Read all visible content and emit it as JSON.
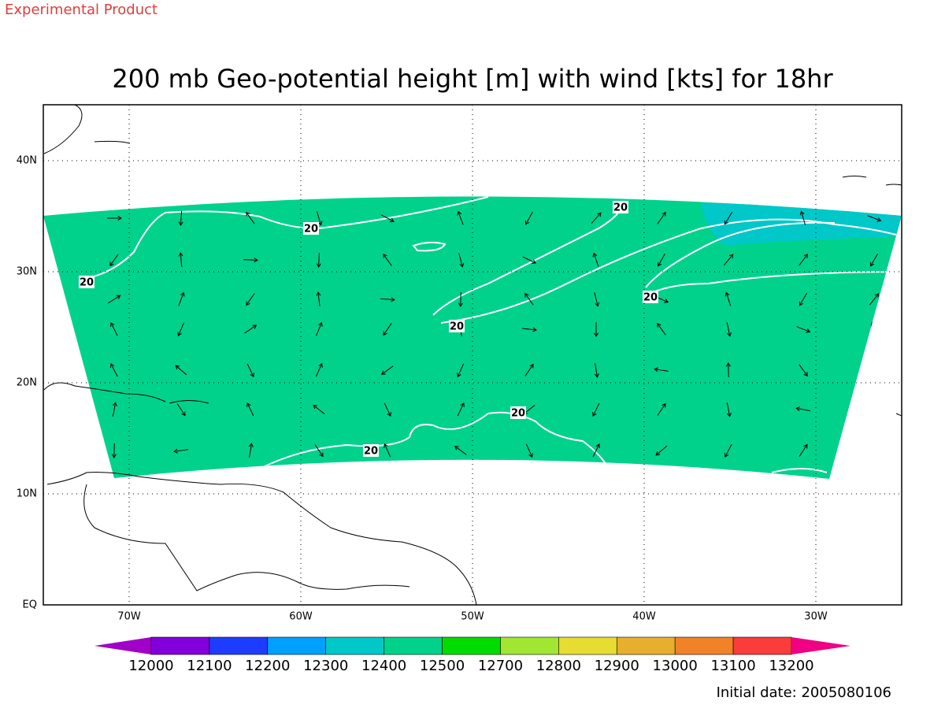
{
  "header": {
    "note": "Experimental Product",
    "title": "200 mb Geo-potential height [m] with wind [kts] for 18hr"
  },
  "map": {
    "lon_ticks": [
      {
        "value": -70,
        "label": "70W"
      },
      {
        "value": -60,
        "label": "60W"
      },
      {
        "value": -50,
        "label": "50W"
      },
      {
        "value": -40,
        "label": "40W"
      },
      {
        "value": -30,
        "label": "30W"
      }
    ],
    "lat_ticks": [
      {
        "value": 0,
        "label": "EQ"
      },
      {
        "value": 10,
        "label": "10N"
      },
      {
        "value": 20,
        "label": "20N"
      },
      {
        "value": 30,
        "label": "30N"
      },
      {
        "value": 40,
        "label": "40N"
      }
    ],
    "contour_labels": [
      20,
      20,
      20,
      20,
      20,
      20,
      20
    ],
    "colorbar": {
      "levels": [
        12000,
        12100,
        12200,
        12300,
        12400,
        12500,
        12700,
        12800,
        12900,
        13000,
        13100,
        13200
      ],
      "colors": [
        "#a000c8",
        "#8200dc",
        "#1e3cff",
        "#00a0ff",
        "#00c8c8",
        "#00d28c",
        "#00dc00",
        "#a0e632",
        "#e6dc32",
        "#e6af2d",
        "#f08228",
        "#fa3c3c",
        "#f00082"
      ]
    }
  },
  "footer": {
    "initial_date": "Initial date: 2005080106"
  }
}
